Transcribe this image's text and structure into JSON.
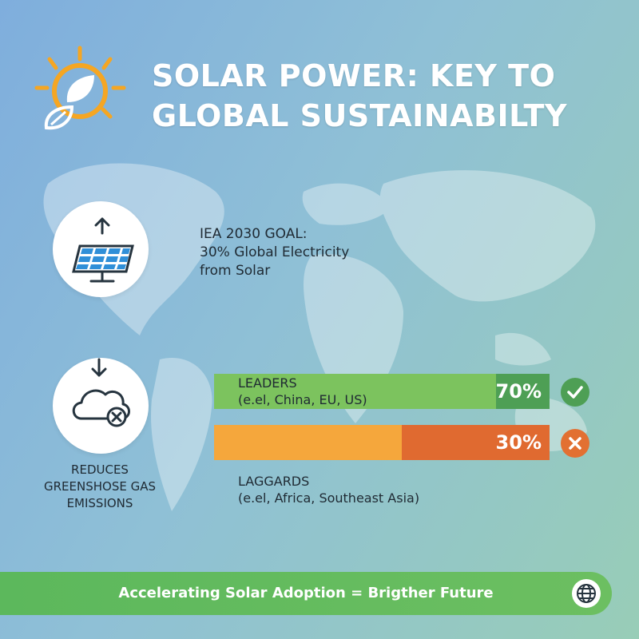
{
  "header": {
    "title_line1": "SOLAR POWER: KEY TO",
    "title_line2": "GLOBAL SUSTAINABILTY"
  },
  "goal": {
    "line1": "IEA 2030 GOAL:",
    "line2": "30% Global Electricity",
    "line3": "from Solar"
  },
  "reduces": {
    "line1": "REDUCES",
    "line2": "GREENSHOSE GAS",
    "line3": "EMISSIONS"
  },
  "leaders": {
    "label_line1": "LEADERS",
    "label_line2": "(e.el, China, EU, US)",
    "percent_text": "70%",
    "value": 0.7,
    "color_light": "#7cc35e",
    "color_dark": "#4e9f55",
    "status": "check-icon"
  },
  "laggards": {
    "label_line1": "LAGGARDS",
    "label_line2": "(e.el, Africa, Southeast Asia)",
    "percent_text": "30%",
    "value": 0.3,
    "color_light": "#f5a73c",
    "color_dark": "#e06a30",
    "status": "x-icon"
  },
  "footer": {
    "text": "Accelerating Solar Adoption = Brigther Future",
    "icon": "globe-icon"
  },
  "icons": {
    "logo": "sun-leaf-icon",
    "top_circle": "solar-panel-icon",
    "top_arrow": "arrow-up-icon",
    "bottom_circle": "cloud-x-icon",
    "bottom_arrow": "arrow-down-icon"
  }
}
